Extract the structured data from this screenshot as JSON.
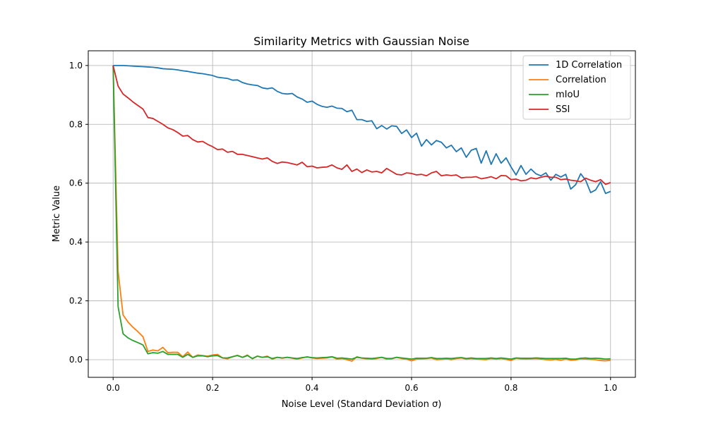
{
  "chart_data": {
    "type": "line",
    "title": "Similarity Metrics with Gaussian Noise",
    "xlabel": "Noise Level (Standard Deviation σ)",
    "ylabel": "Metric Value",
    "xlim": [
      -0.05,
      1.05
    ],
    "ylim": [
      -0.06,
      1.05
    ],
    "xticks": [
      0.0,
      0.2,
      0.4,
      0.6,
      0.8,
      1.0
    ],
    "xtick_labels": [
      "0.0",
      "0.2",
      "0.4",
      "0.6",
      "0.8",
      "1.0"
    ],
    "yticks": [
      0.0,
      0.2,
      0.4,
      0.6,
      0.8,
      1.0
    ],
    "ytick_labels": [
      "0.0",
      "0.2",
      "0.4",
      "0.6",
      "0.8",
      "1.0"
    ],
    "grid": true,
    "legend_position": "top-right",
    "x": [
      0.0,
      0.01,
      0.02,
      0.03,
      0.04,
      0.05,
      0.06,
      0.07,
      0.08,
      0.09,
      0.1,
      0.11,
      0.12,
      0.13,
      0.14,
      0.15,
      0.16,
      0.17,
      0.18,
      0.19,
      0.2,
      0.21,
      0.22,
      0.23,
      0.24,
      0.25,
      0.26,
      0.27,
      0.28,
      0.29,
      0.3,
      0.31,
      0.32,
      0.33,
      0.34,
      0.35,
      0.36,
      0.37,
      0.38,
      0.39,
      0.4,
      0.41,
      0.42,
      0.43,
      0.44,
      0.45,
      0.46,
      0.47,
      0.48,
      0.49,
      0.5,
      0.51,
      0.52,
      0.53,
      0.54,
      0.55,
      0.56,
      0.57,
      0.58,
      0.59,
      0.6,
      0.61,
      0.62,
      0.63,
      0.64,
      0.65,
      0.66,
      0.67,
      0.68,
      0.69,
      0.7,
      0.71,
      0.72,
      0.73,
      0.74,
      0.75,
      0.76,
      0.77,
      0.78,
      0.79,
      0.8,
      0.81,
      0.82,
      0.83,
      0.84,
      0.85,
      0.86,
      0.87,
      0.88,
      0.89,
      0.9,
      0.91,
      0.92,
      0.93,
      0.94,
      0.95,
      0.96,
      0.97,
      0.98,
      0.99,
      1.0
    ],
    "series": [
      {
        "name": "1D Correlation",
        "color": "#1f77b4",
        "values": [
          1.0,
          1.0,
          1.0,
          0.999,
          0.998,
          0.997,
          0.996,
          0.995,
          0.994,
          0.992,
          0.989,
          0.988,
          0.987,
          0.985,
          0.982,
          0.98,
          0.977,
          0.974,
          0.972,
          0.969,
          0.966,
          0.96,
          0.958,
          0.956,
          0.95,
          0.951,
          0.942,
          0.937,
          0.934,
          0.932,
          0.924,
          0.921,
          0.924,
          0.912,
          0.905,
          0.903,
          0.905,
          0.893,
          0.886,
          0.875,
          0.879,
          0.868,
          0.861,
          0.858,
          0.862,
          0.855,
          0.854,
          0.843,
          0.848,
          0.816,
          0.816,
          0.81,
          0.812,
          0.785,
          0.796,
          0.784,
          0.795,
          0.793,
          0.769,
          0.781,
          0.755,
          0.77,
          0.726,
          0.748,
          0.73,
          0.745,
          0.739,
          0.72,
          0.729,
          0.707,
          0.72,
          0.688,
          0.712,
          0.718,
          0.668,
          0.71,
          0.664,
          0.7,
          0.668,
          0.686,
          0.655,
          0.628,
          0.66,
          0.63,
          0.648,
          0.632,
          0.625,
          0.635,
          0.61,
          0.63,
          0.621,
          0.63,
          0.58,
          0.595,
          0.632,
          0.61,
          0.568,
          0.577,
          0.605,
          0.565,
          0.572
        ]
      },
      {
        "name": "Correlation",
        "color": "#ff7f0e",
        "values": [
          1.0,
          0.3,
          0.152,
          0.128,
          0.11,
          0.095,
          0.078,
          0.028,
          0.033,
          0.03,
          0.042,
          0.024,
          0.025,
          0.025,
          0.01,
          0.026,
          0.008,
          0.016,
          0.014,
          0.012,
          0.016,
          0.018,
          0.006,
          0.003,
          0.01,
          0.015,
          0.008,
          0.016,
          0.003,
          0.012,
          0.008,
          0.012,
          0.002,
          0.008,
          0.005,
          0.008,
          0.005,
          0.002,
          0.006,
          0.01,
          0.006,
          0.004,
          0.005,
          0.006,
          0.01,
          0.002,
          0.004,
          0.0,
          -0.005,
          0.01,
          0.005,
          0.003,
          0.002,
          0.004,
          0.008,
          0.002,
          0.003,
          0.008,
          0.004,
          0.002,
          -0.004,
          0.002,
          0.003,
          0.004,
          0.006,
          0.0,
          0.001,
          0.003,
          0.0,
          0.004,
          0.006,
          0.002,
          0.004,
          0.002,
          0.001,
          0.0,
          0.004,
          0.002,
          0.004,
          0.001,
          -0.003,
          0.005,
          0.003,
          0.002,
          0.003,
          0.004,
          0.002,
          0.0,
          -0.001,
          0.001,
          -0.002,
          0.002,
          -0.002,
          -0.001,
          0.003,
          0.002,
          0.001,
          0.0,
          -0.003,
          -0.004,
          -0.002
        ]
      },
      {
        "name": "mIoU",
        "color": "#2ca02c",
        "values": [
          1.0,
          0.18,
          0.088,
          0.074,
          0.065,
          0.058,
          0.05,
          0.02,
          0.024,
          0.022,
          0.028,
          0.018,
          0.018,
          0.018,
          0.008,
          0.018,
          0.008,
          0.013,
          0.013,
          0.01,
          0.013,
          0.014,
          0.006,
          0.006,
          0.01,
          0.014,
          0.008,
          0.014,
          0.004,
          0.012,
          0.008,
          0.01,
          0.004,
          0.008,
          0.006,
          0.008,
          0.006,
          0.004,
          0.007,
          0.009,
          0.007,
          0.006,
          0.007,
          0.008,
          0.01,
          0.005,
          0.006,
          0.004,
          0.002,
          0.008,
          0.006,
          0.005,
          0.004,
          0.006,
          0.008,
          0.004,
          0.004,
          0.008,
          0.006,
          0.004,
          0.002,
          0.005,
          0.005,
          0.005,
          0.007,
          0.004,
          0.004,
          0.005,
          0.004,
          0.006,
          0.007,
          0.004,
          0.006,
          0.004,
          0.004,
          0.004,
          0.006,
          0.004,
          0.006,
          0.004,
          0.002,
          0.006,
          0.005,
          0.005,
          0.005,
          0.006,
          0.005,
          0.004,
          0.004,
          0.004,
          0.004,
          0.005,
          0.002,
          0.002,
          0.005,
          0.006,
          0.004,
          0.005,
          0.004,
          0.002,
          0.003
        ]
      },
      {
        "name": "SSI",
        "color": "#d62728",
        "values": [
          1.0,
          0.93,
          0.903,
          0.89,
          0.876,
          0.864,
          0.852,
          0.823,
          0.82,
          0.81,
          0.8,
          0.788,
          0.782,
          0.772,
          0.76,
          0.762,
          0.748,
          0.74,
          0.742,
          0.732,
          0.724,
          0.714,
          0.716,
          0.705,
          0.708,
          0.698,
          0.698,
          0.694,
          0.69,
          0.686,
          0.682,
          0.686,
          0.674,
          0.667,
          0.672,
          0.67,
          0.666,
          0.662,
          0.671,
          0.656,
          0.658,
          0.652,
          0.654,
          0.655,
          0.662,
          0.652,
          0.647,
          0.662,
          0.64,
          0.648,
          0.636,
          0.645,
          0.638,
          0.64,
          0.635,
          0.65,
          0.64,
          0.63,
          0.628,
          0.635,
          0.633,
          0.628,
          0.63,
          0.625,
          0.635,
          0.64,
          0.625,
          0.628,
          0.626,
          0.628,
          0.618,
          0.62,
          0.62,
          0.622,
          0.615,
          0.618,
          0.622,
          0.615,
          0.626,
          0.625,
          0.612,
          0.614,
          0.608,
          0.61,
          0.618,
          0.615,
          0.62,
          0.624,
          0.62,
          0.62,
          0.612,
          0.614,
          0.61,
          0.608,
          0.605,
          0.617,
          0.61,
          0.605,
          0.612,
          0.596,
          0.602
        ]
      }
    ]
  }
}
